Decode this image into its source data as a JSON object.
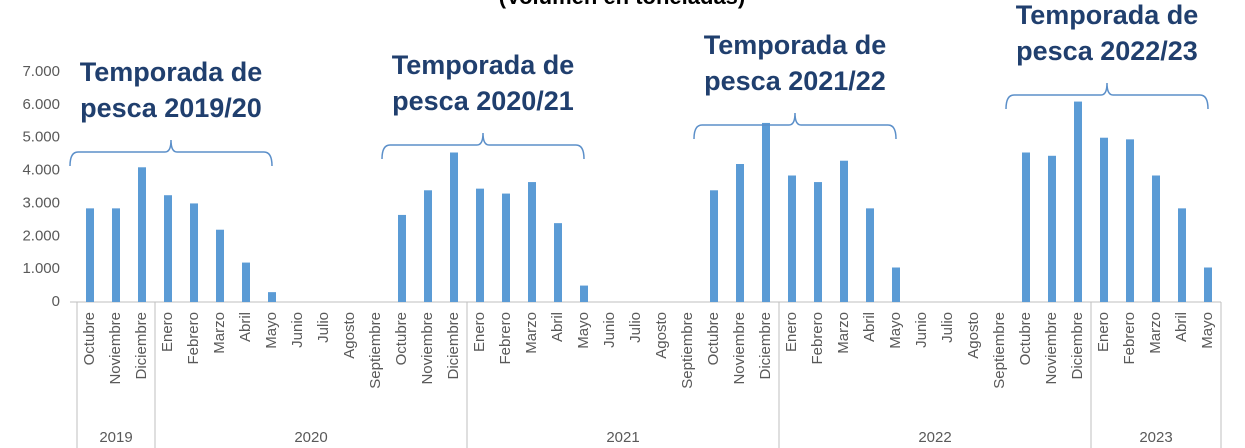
{
  "chart_data": {
    "type": "bar",
    "title": "(Volumen en toneladas)",
    "categories": [
      "Octubre",
      "Noviembre",
      "Diciembre",
      "Enero",
      "Febrero",
      "Marzo",
      "Abril",
      "Mayo",
      "Junio",
      "Julio",
      "Agosto",
      "Septiembre",
      "Octubre",
      "Noviembre",
      "Diciembre",
      "Enero",
      "Febrero",
      "Marzo",
      "Abril",
      "Mayo",
      "Junio",
      "Julio",
      "Agosto",
      "Septiembre",
      "Octubre",
      "Noviembre",
      "Diciembre",
      "Enero",
      "Febrero",
      "Marzo",
      "Abril",
      "Mayo",
      "Junio",
      "Julio",
      "Agosto",
      "Septiembre",
      "Octubre",
      "Noviembre",
      "Diciembre",
      "Enero",
      "Febrero",
      "Marzo",
      "Abril",
      "Mayo"
    ],
    "values": [
      2850,
      2850,
      4100,
      3250,
      3000,
      2200,
      1200,
      300,
      0,
      0,
      0,
      0,
      2650,
      3400,
      4550,
      3450,
      3300,
      3650,
      2400,
      500,
      0,
      0,
      0,
      0,
      3400,
      4200,
      5450,
      3850,
      3650,
      4300,
      2850,
      1050,
      0,
      0,
      0,
      0,
      4550,
      4450,
      6100,
      5000,
      4950,
      3850,
      2850,
      1050
    ],
    "color": "#5b9bd5",
    "year_groups": [
      {
        "label": "2019",
        "count": 3
      },
      {
        "label": "2020",
        "count": 12
      },
      {
        "label": "2021",
        "count": 12
      },
      {
        "label": "2022",
        "count": 12
      },
      {
        "label": "2023",
        "count": 5
      }
    ],
    "annotations": [
      {
        "lines": [
          "Temporada de",
          "pesca 2019/20"
        ],
        "from": 0,
        "to": 7
      },
      {
        "lines": [
          "Temporada de",
          "pesca 2020/21"
        ],
        "from": 12,
        "to": 19
      },
      {
        "lines": [
          "Temporada de",
          "pesca 2021/22"
        ],
        "from": 24,
        "to": 31
      },
      {
        "lines": [
          "Temporada de",
          "pesca 2022/23"
        ],
        "from": 36,
        "to": 43
      }
    ],
    "ylim": [
      0,
      7000
    ],
    "yticks": [
      0,
      {
        "value": 1000,
        "label": "1.000"
      },
      {
        "value": 2000,
        "label": "2.000"
      },
      {
        "value": 3000,
        "label": "3.000"
      },
      {
        "value": 4000,
        "label": "4.000"
      },
      {
        "value": 5000,
        "label": "5.000"
      },
      {
        "value": 6000,
        "label": "6.000"
      },
      {
        "value": 7000,
        "label": "7.000"
      }
    ],
    "grid": false
  }
}
